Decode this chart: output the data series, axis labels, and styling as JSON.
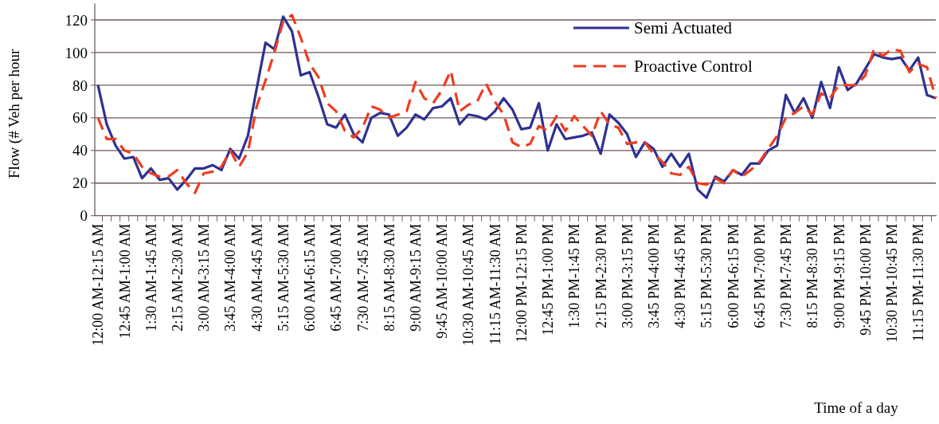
{
  "chart_data": {
    "type": "line",
    "xlabel": "Time of a day",
    "ylabel": "Flow (# Veh per hour",
    "categories": [
      "12:00 AM-12:15 AM",
      null,
      null,
      "12:45 AM-1:00 AM",
      null,
      null,
      "1:30 AM-1:45 AM",
      null,
      null,
      "2:15 AM-2:30 AM",
      null,
      null,
      "3:00 AM-3:15 AM",
      null,
      null,
      "3:45 AM-4:00 AM",
      null,
      null,
      "4:30 AM-4:45 AM",
      null,
      null,
      "5:15 AM-5:30 AM",
      null,
      null,
      "6:00 AM-6:15 AM",
      null,
      null,
      "6:45 AM-7:00 AM",
      null,
      null,
      "7:30 AM-7:45 AM",
      null,
      null,
      "8:15 AM-8:30 AM",
      null,
      null,
      "9:00 AM-9:15 AM",
      null,
      null,
      "9:45 AM-10:00 AM",
      null,
      null,
      "10:30 AM-10:45 AM",
      null,
      null,
      "11:15 AM-11:30 AM",
      null,
      null,
      "12:00 PM-12:15 PM",
      null,
      null,
      "12:45 PM-1:00 PM",
      null,
      null,
      "1:30 PM-1:45 PM",
      null,
      null,
      "2:15 PM-2:30 PM",
      null,
      null,
      "3:00 PM-3:15 PM",
      null,
      null,
      "3:45 PM-4:00 PM",
      null,
      null,
      "4:30 PM-4:45 PM",
      null,
      null,
      "5:15 PM-5:30 PM",
      null,
      null,
      "6:00 PM-6:15 PM",
      null,
      null,
      "6:45 PM-7:00 PM",
      null,
      null,
      "7:30 PM-7:45 PM",
      null,
      null,
      "8:15 PM-8:30 PM",
      null,
      null,
      "9:00 PM-9:15 PM",
      null,
      null,
      "9:45 PM-10:00 PM",
      null,
      null,
      "10:30 PM-10:45 PM",
      null,
      null,
      "11:15 PM-11:30 PM",
      null,
      null
    ],
    "series": [
      {
        "name": "Semi Actuated",
        "color": "#2e3192",
        "line_style": "solid",
        "values": [
          80,
          56,
          43,
          35,
          36,
          23,
          29,
          22,
          23,
          16,
          22,
          29,
          29,
          31,
          28,
          41,
          35,
          49,
          78,
          106,
          102,
          122,
          113,
          86,
          88,
          73,
          56,
          54,
          62,
          50,
          45,
          60,
          63,
          62,
          49,
          54,
          62,
          59,
          66,
          67,
          72,
          56,
          62,
          61,
          59,
          64,
          72,
          65,
          53,
          54,
          69,
          40,
          56,
          47,
          48,
          49,
          51,
          38,
          62,
          57,
          50,
          36,
          45,
          41,
          30,
          38,
          30,
          38,
          16,
          11,
          24,
          21,
          28,
          25,
          32,
          32,
          40,
          43,
          74,
          63,
          72,
          60,
          82,
          66,
          91,
          77,
          81,
          90,
          99,
          97,
          96,
          97,
          89,
          97,
          74,
          72
        ]
      },
      {
        "name": "Proactive Control",
        "color": "#f03c1e",
        "line_style": "dashed",
        "values": [
          60,
          47,
          47,
          40,
          38,
          30,
          26,
          24,
          24,
          28,
          20,
          14,
          26,
          27,
          30,
          40,
          30,
          39,
          67,
          83,
          100,
          119,
          123,
          109,
          93,
          85,
          69,
          64,
          52,
          48,
          54,
          67,
          65,
          60,
          62,
          64,
          82,
          72,
          69,
          77,
          89,
          64,
          68,
          70,
          81,
          70,
          62,
          45,
          42,
          44,
          55,
          52,
          61,
          52,
          61,
          55,
          49,
          64,
          56,
          54,
          44,
          45,
          45,
          38,
          33,
          26,
          25,
          30,
          20,
          19,
          23,
          20,
          28,
          24,
          28,
          33,
          41,
          49,
          60,
          63,
          67,
          62,
          75,
          72,
          80,
          80,
          80,
          86,
          102,
          98,
          102,
          101,
          88,
          93,
          91,
          72
        ]
      }
    ],
    "ylim": [
      0,
      130
    ],
    "yticks": [
      0,
      20,
      40,
      60,
      80,
      100,
      120
    ],
    "grid": "y",
    "legend": "top right",
    "marker": "none"
  }
}
